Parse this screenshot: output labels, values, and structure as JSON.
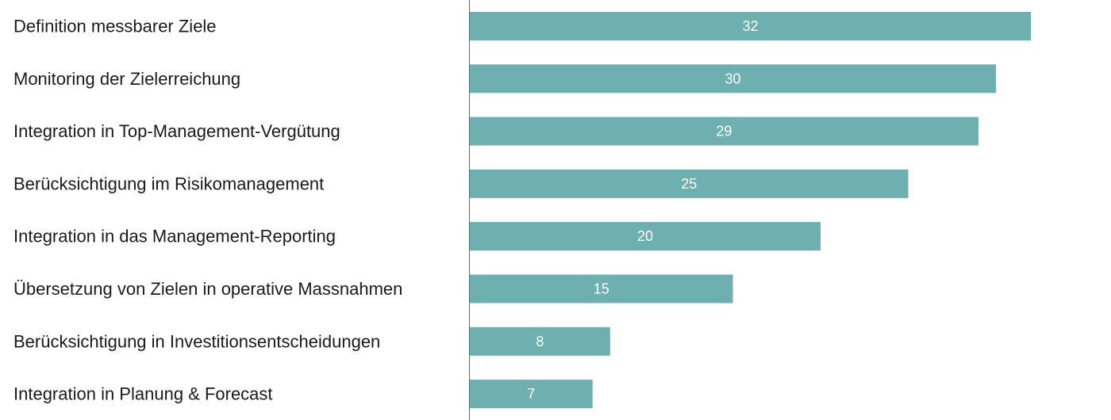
{
  "chart_data": {
    "type": "bar",
    "orientation": "horizontal",
    "categories": [
      "Definition messbarer Ziele",
      "Monitoring der Zielerreichung",
      "Integration in Top-Management-Vergütung",
      "Berücksichtigung im Risikomanagement",
      "Integration in das Management-Reporting",
      "Übersetzung von Zielen in operative Massnahmen",
      "Berücksichtigung in Investitionsentscheidungen",
      "Integration in Planung & Forecast"
    ],
    "values": [
      32,
      30,
      29,
      25,
      20,
      15,
      8,
      7
    ],
    "title": "",
    "xlabel": "",
    "ylabel": "",
    "xlim": [
      0,
      35
    ],
    "grid": false,
    "legend": "none",
    "data_labels": "inside-center",
    "bar_color": "#6eafaf",
    "axis_color": "#666666",
    "label_color": "#1a1a1a",
    "data_label_color": "#ffffff"
  }
}
